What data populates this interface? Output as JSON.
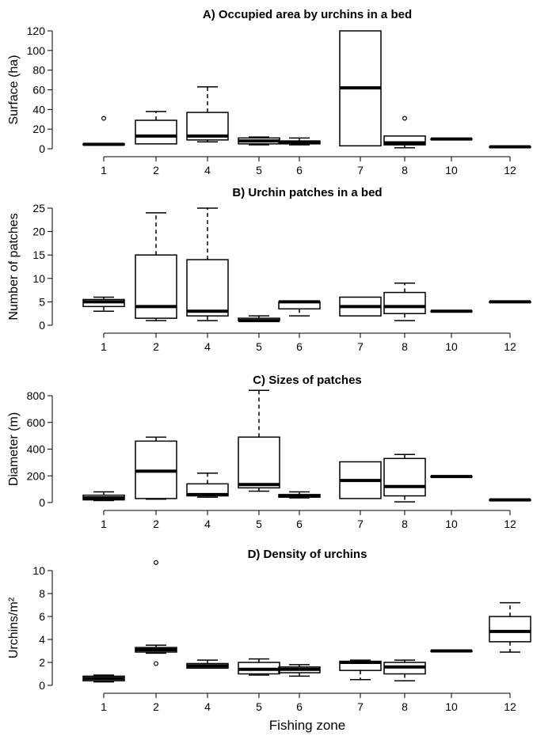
{
  "xlabel": "Fishing zone",
  "chart_data": [
    {
      "type": "boxplot",
      "title": "A) Occupied area by urchins in a bed",
      "ylabel": "Surface (ha)",
      "ylim": [
        0,
        120
      ],
      "yticks": [
        0,
        20,
        40,
        60,
        80,
        100,
        120
      ],
      "categories": [
        "1",
        "2",
        "4",
        "5",
        "6",
        "7",
        "8",
        "10",
        "12"
      ],
      "boxes": [
        {
          "min": 4,
          "q1": 4,
          "median": 4.5,
          "q3": 5,
          "max": 5,
          "outliers": [
            31
          ]
        },
        {
          "min": 5,
          "q1": 5,
          "median": 13,
          "q3": 29,
          "max": 38,
          "outliers": []
        },
        {
          "min": 7,
          "q1": 9,
          "median": 13,
          "q3": 37,
          "max": 63,
          "outliers": []
        },
        {
          "min": 4,
          "q1": 5,
          "median": 8,
          "q3": 11,
          "max": 12,
          "outliers": []
        },
        {
          "min": 4,
          "q1": 5,
          "median": 6,
          "q3": 8,
          "max": 11,
          "outliers": []
        },
        {
          "min": 3,
          "q1": 3,
          "median": 62,
          "q3": 120,
          "max": 120,
          "outliers": []
        },
        {
          "min": 1,
          "q1": 4,
          "median": 6,
          "q3": 13,
          "max": 13,
          "outliers": [
            31
          ]
        },
        {
          "min": 10,
          "q1": 10,
          "median": 10,
          "q3": 10,
          "max": 10,
          "outliers": []
        },
        {
          "min": 2,
          "q1": 2,
          "median": 2,
          "q3": 2,
          "max": 2,
          "outliers": []
        }
      ]
    },
    {
      "type": "boxplot",
      "title": "B) Urchin patches in a bed",
      "ylabel": "Number of patches",
      "ylim": [
        0,
        25
      ],
      "yticks": [
        0,
        5,
        10,
        15,
        20,
        25
      ],
      "categories": [
        "1",
        "2",
        "4",
        "5",
        "6",
        "7",
        "8",
        "10",
        "12"
      ],
      "boxes": [
        {
          "min": 3,
          "q1": 4,
          "median": 5,
          "q3": 5.5,
          "max": 6,
          "outliers": []
        },
        {
          "min": 1,
          "q1": 1.5,
          "median": 4,
          "q3": 15,
          "max": 24,
          "outliers": []
        },
        {
          "min": 1,
          "q1": 2,
          "median": 3,
          "q3": 14,
          "max": 25,
          "outliers": []
        },
        {
          "min": 1,
          "q1": 1,
          "median": 1,
          "q3": 1.5,
          "max": 2,
          "outliers": []
        },
        {
          "min": 2,
          "q1": 3.5,
          "median": 5,
          "q3": 5,
          "max": 5,
          "outliers": []
        },
        {
          "min": 2,
          "q1": 2,
          "median": 4,
          "q3": 6,
          "max": 6,
          "outliers": []
        },
        {
          "min": 1,
          "q1": 2.5,
          "median": 4,
          "q3": 7,
          "max": 9,
          "outliers": []
        },
        {
          "min": 3,
          "q1": 3,
          "median": 3,
          "q3": 3,
          "max": 3,
          "outliers": []
        },
        {
          "min": 5,
          "q1": 5,
          "median": 5,
          "q3": 5,
          "max": 5,
          "outliers": []
        }
      ]
    },
    {
      "type": "boxplot",
      "title": "C) Sizes of patches",
      "ylabel": "Diameter (m)",
      "ylim": [
        0,
        800
      ],
      "yticks": [
        0,
        200,
        400,
        600,
        800
      ],
      "categories": [
        "1",
        "2",
        "4",
        "5",
        "6",
        "7",
        "8",
        "10",
        "12"
      ],
      "boxes": [
        {
          "min": 15,
          "q1": 20,
          "median": 35,
          "q3": 55,
          "max": 80,
          "outliers": []
        },
        {
          "min": 25,
          "q1": 30,
          "median": 235,
          "q3": 460,
          "max": 490,
          "outliers": []
        },
        {
          "min": 40,
          "q1": 50,
          "median": 60,
          "q3": 140,
          "max": 220,
          "outliers": []
        },
        {
          "min": 85,
          "q1": 110,
          "median": 135,
          "q3": 490,
          "max": 840,
          "outliers": []
        },
        {
          "min": 35,
          "q1": 40,
          "median": 50,
          "q3": 60,
          "max": 80,
          "outliers": []
        },
        {
          "min": 30,
          "q1": 30,
          "median": 165,
          "q3": 305,
          "max": 305,
          "outliers": []
        },
        {
          "min": 5,
          "q1": 50,
          "median": 120,
          "q3": 330,
          "max": 360,
          "outliers": []
        },
        {
          "min": 195,
          "q1": 195,
          "median": 195,
          "q3": 195,
          "max": 195,
          "outliers": []
        },
        {
          "min": 20,
          "q1": 20,
          "median": 20,
          "q3": 20,
          "max": 20,
          "outliers": []
        }
      ]
    },
    {
      "type": "boxplot",
      "title": "D) Density of urchins",
      "ylabel": "Urchins/m²",
      "ylim": [
        0,
        10
      ],
      "yticks": [
        0,
        2,
        4,
        6,
        8,
        10
      ],
      "categories": [
        "1",
        "2",
        "4",
        "5",
        "6",
        "7",
        "8",
        "10",
        "12"
      ],
      "boxes": [
        {
          "min": 0.3,
          "q1": 0.4,
          "median": 0.6,
          "q3": 0.8,
          "max": 0.9,
          "outliers": []
        },
        {
          "min": 2.8,
          "q1": 2.9,
          "median": 3.1,
          "q3": 3.3,
          "max": 3.5,
          "outliers": [
            10.7,
            1.9
          ]
        },
        {
          "min": 1.5,
          "q1": 1.5,
          "median": 1.7,
          "q3": 1.9,
          "max": 2.2,
          "outliers": []
        },
        {
          "min": 0.9,
          "q1": 1.0,
          "median": 1.4,
          "q3": 2.0,
          "max": 2.3,
          "outliers": []
        },
        {
          "min": 0.8,
          "q1": 1.1,
          "median": 1.4,
          "q3": 1.6,
          "max": 1.8,
          "outliers": []
        },
        {
          "min": 0.5,
          "q1": 1.3,
          "median": 2.0,
          "q3": 2.1,
          "max": 2.2,
          "outliers": []
        },
        {
          "min": 0.4,
          "q1": 1.0,
          "median": 1.6,
          "q3": 2.0,
          "max": 2.2,
          "outliers": []
        },
        {
          "min": 3.0,
          "q1": 3.0,
          "median": 3.0,
          "q3": 3.0,
          "max": 3.0,
          "outliers": []
        },
        {
          "min": 2.9,
          "q1": 3.8,
          "median": 4.7,
          "q3": 6.0,
          "max": 7.2,
          "outliers": []
        }
      ]
    }
  ]
}
